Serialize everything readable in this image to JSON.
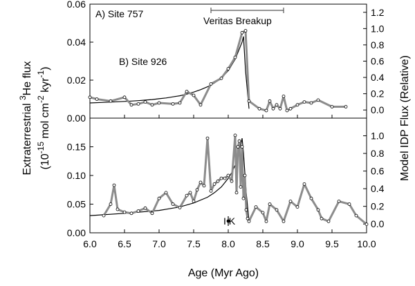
{
  "chart_data": [
    {
      "type": "line",
      "panel_label": "A) Site 757",
      "annotation": "Veritas Breakup",
      "annotation_range": [
        7.75,
        8.8
      ],
      "xlim": [
        6.0,
        10.0
      ],
      "ylim": [
        0.0,
        0.06
      ],
      "yticks": [
        "0.00",
        "0.02",
        "0.04",
        "0.06"
      ],
      "y2lim": [
        -0.1,
        1.3
      ],
      "y2ticks": [
        "0.0",
        "0.2",
        "0.4",
        "0.6",
        "0.8",
        "1.0",
        "1.2"
      ],
      "series": [
        {
          "x": [
            6.0,
            6.2,
            6.4,
            6.5,
            6.6,
            6.7,
            6.8,
            6.9,
            7.0,
            7.1,
            7.2,
            7.3,
            7.4,
            7.5,
            7.6,
            7.7,
            7.8,
            7.9,
            8.0,
            8.1,
            8.2,
            8.22,
            8.25,
            8.3
          ],
          "y": [
            0.008,
            0.0083,
            0.0086,
            0.0088,
            0.009,
            0.0092,
            0.0095,
            0.0098,
            0.0102,
            0.0106,
            0.0112,
            0.0118,
            0.0126,
            0.0137,
            0.015,
            0.0165,
            0.0185,
            0.021,
            0.025,
            0.031,
            0.04,
            0.043,
            0.025,
            0.005
          ]
        },
        {
          "x": [
            6.0,
            6.1,
            6.3,
            6.5,
            6.6,
            6.7,
            6.8,
            6.9,
            7.0,
            7.2,
            7.3,
            7.4,
            7.5,
            7.6,
            7.75,
            7.9,
            8.0,
            8.1,
            8.2,
            8.25,
            8.3,
            8.45,
            8.55,
            8.6,
            8.65,
            8.7,
            8.75,
            8.8,
            8.85,
            8.9,
            9.0,
            9.1,
            9.2,
            9.3,
            9.5,
            9.7
          ],
          "y": [
            0.011,
            0.01,
            0.009,
            0.011,
            0.007,
            0.0075,
            0.0085,
            0.007,
            0.008,
            0.0075,
            0.008,
            0.014,
            0.012,
            0.007,
            0.018,
            0.021,
            0.026,
            0.032,
            0.045,
            0.046,
            0.009,
            0.005,
            0.004,
            0.009,
            0.005,
            0.007,
            0.005,
            0.0115,
            0.004,
            0.005,
            0.007,
            0.0085,
            0.008,
            0.0095,
            0.006,
            0.006
          ]
        }
      ]
    },
    {
      "type": "line",
      "panel_label": "B) Site 926",
      "annotation": "I K",
      "annotation_x": 8.0,
      "xlim": [
        6.0,
        10.0
      ],
      "xticks": [
        "6.0",
        "6.5",
        "7.0",
        "7.5",
        "8.0",
        "8.5",
        "9.0",
        "9.5",
        "10.0"
      ],
      "ylim": [
        0.0,
        0.2
      ],
      "yticks": [
        "0.00",
        "0.05",
        "0.10",
        "0.15"
      ],
      "y2lim": [
        -0.1,
        1.2
      ],
      "y2ticks": [
        "0.0",
        "0.2",
        "0.4",
        "0.6",
        "0.8",
        "1.0"
      ],
      "series": [
        {
          "x": [
            6.0,
            6.5,
            7.0,
            7.3,
            7.5,
            7.7,
            7.8,
            7.9,
            8.0,
            8.05,
            8.1,
            8.15,
            8.2,
            8.22,
            8.26,
            8.3
          ],
          "y": [
            0.03,
            0.034,
            0.039,
            0.045,
            0.052,
            0.062,
            0.07,
            0.08,
            0.095,
            0.105,
            0.118,
            0.135,
            0.165,
            0.14,
            0.07,
            0.02
          ]
        },
        {
          "x": [
            6.2,
            6.3,
            6.35,
            6.4,
            6.5,
            6.6,
            6.7,
            6.8,
            6.9,
            7.0,
            7.1,
            7.2,
            7.3,
            7.4,
            7.45,
            7.5,
            7.55,
            7.6,
            7.65,
            7.7,
            7.75,
            7.8,
            7.85,
            7.9,
            7.95,
            8.0,
            8.05,
            8.1,
            8.12,
            8.14,
            8.16,
            8.18,
            8.2,
            8.22,
            8.24,
            8.26,
            8.28,
            8.3,
            8.4,
            8.5,
            8.55,
            8.6,
            8.7,
            8.8,
            8.9,
            9.0,
            9.1,
            9.2,
            9.3,
            9.35,
            9.45,
            9.6,
            9.75,
            9.85,
            10.0
          ],
          "y": [
            0.03,
            0.05,
            0.083,
            0.041,
            0.036,
            0.034,
            0.038,
            0.043,
            0.034,
            0.06,
            0.07,
            0.05,
            0.044,
            0.065,
            0.07,
            0.055,
            0.075,
            0.088,
            0.082,
            0.165,
            0.073,
            0.085,
            0.09,
            0.095,
            0.095,
            0.1,
            0.09,
            0.17,
            0.07,
            0.15,
            0.16,
            0.08,
            0.15,
            0.06,
            0.1,
            0.04,
            0.025,
            0.02,
            0.045,
            0.035,
            0.02,
            0.05,
            0.04,
            0.02,
            0.055,
            0.045,
            0.085,
            0.06,
            0.04,
            0.025,
            0.02,
            0.055,
            0.05,
            0.03,
            0.015
          ]
        }
      ]
    }
  ],
  "axes": {
    "xlabel": "Age (Myr Ago)",
    "ylabel_left_line1_a": "Extraterrestrial ",
    "ylabel_left_sup3": "3",
    "ylabel_left_line1_b": "He flux",
    "ylabel_left_line2_a": "(10",
    "ylabel_left_sup15": "-15",
    "ylabel_left_line2_b": " mol cm",
    "ylabel_left_sup2": "-2",
    "ylabel_left_line2_c": " kyr",
    "ylabel_left_sup1": "-1",
    "ylabel_left_line2_d": ")",
    "ylabel_right": "Model IDP Flux (Relative)"
  },
  "colors": {
    "model_line": "#000000",
    "data_line": "#8c8c8c",
    "marker_fill": "#ffffff",
    "marker_edge": "#000000"
  }
}
